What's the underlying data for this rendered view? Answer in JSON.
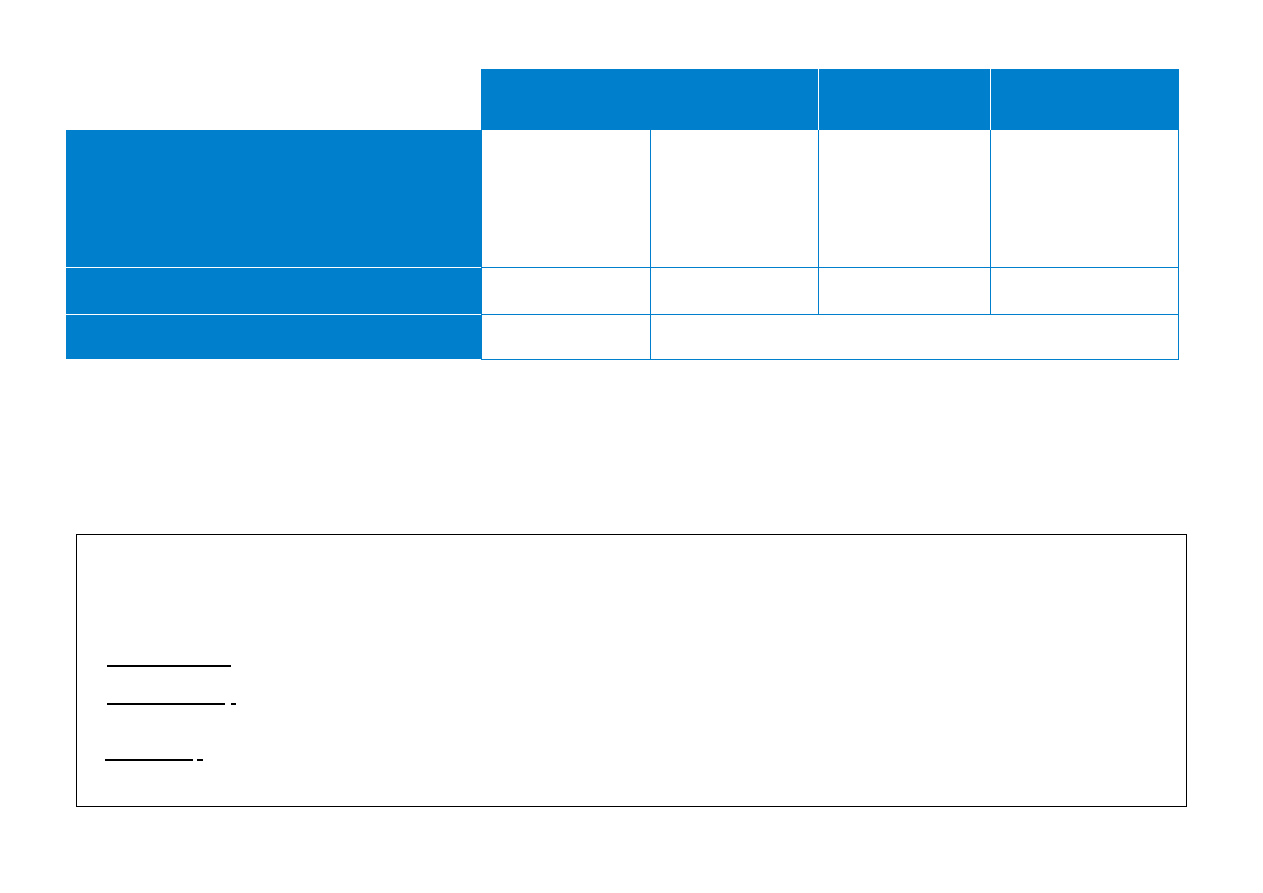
{
  "colors": {
    "accent_blue": "#0080cc",
    "border_black": "#000000",
    "background": "#ffffff"
  },
  "table": {
    "header_cells": [
      "",
      "",
      ""
    ],
    "row_labels": [
      "",
      "",
      ""
    ],
    "rows": [
      [
        "",
        "",
        "",
        ""
      ],
      [
        "",
        "",
        "",
        ""
      ],
      [
        "",
        ""
      ]
    ]
  },
  "legend": {
    "items": [
      "",
      "",
      ""
    ]
  }
}
